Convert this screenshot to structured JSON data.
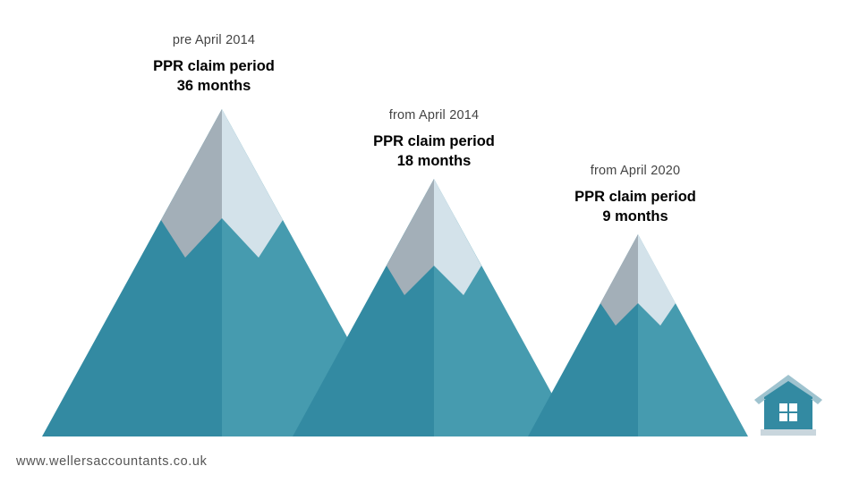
{
  "colors": {
    "mountain_dark": "#338aa2",
    "mountain_light": "#469baf",
    "snow_dark": "#a3afb8",
    "snow_light": "#d3e2ea",
    "house": "#338aa2",
    "house_roof": "#9fc3cf",
    "house_base": "#c9d6dd"
  },
  "periods": [
    {
      "date": "pre April 2014",
      "title": "PPR claim period",
      "duration": "36 months",
      "months": 36
    },
    {
      "date": "from April 2014",
      "title": "PPR claim period",
      "duration": "18 months",
      "months": 18
    },
    {
      "date": "from April 2020",
      "title": "PPR claim period",
      "duration": "9 months",
      "months": 9
    }
  ],
  "house_icon": "house-icon",
  "footer": {
    "website": "www.wellersaccountants.co.uk"
  }
}
